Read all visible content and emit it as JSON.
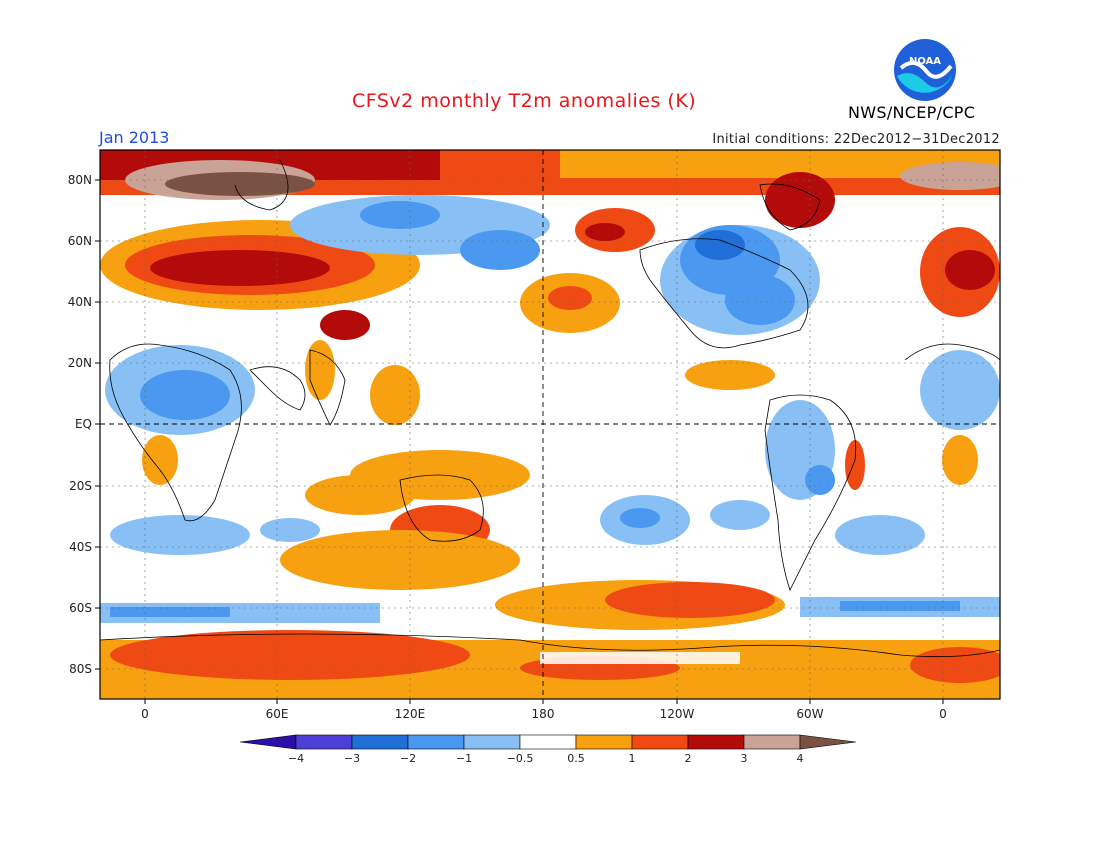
{
  "header": {
    "title": "CFSv2 monthly T2m anomalies (K)",
    "month": "Jan 2013",
    "initial_conditions": "Initial conditions: 22Dec2012−31Dec2012",
    "agency": "NWS/NCEP/CPC",
    "logo_text": "NOAA"
  },
  "map": {
    "projection": "cylindrical-equidistant",
    "lat_labels": [
      "80N",
      "60N",
      "40N",
      "20N",
      "EQ",
      "20S",
      "40S",
      "60S",
      "80S"
    ],
    "lon_labels": [
      "0",
      "60E",
      "120E",
      "180",
      "120W",
      "60W",
      "0"
    ]
  },
  "colorbar": {
    "labels": [
      "−4",
      "−3",
      "−2",
      "−1",
      "−0.5",
      "0.5",
      "1",
      "2",
      "3",
      "4"
    ],
    "colors": [
      "#2b0fa8",
      "#4c3fd6",
      "#1f6fd6",
      "#4a98ef",
      "#88c0f5",
      "#ffffff",
      "#f7a010",
      "#f04a14",
      "#b30a0a",
      "#c9a395",
      "#7a5243"
    ]
  },
  "colors": {
    "title": "#e8161b",
    "month": "#1f4fd8",
    "noaa_blue": "#1f5fd8",
    "noaa_cyan": "#1ccbe8"
  }
}
